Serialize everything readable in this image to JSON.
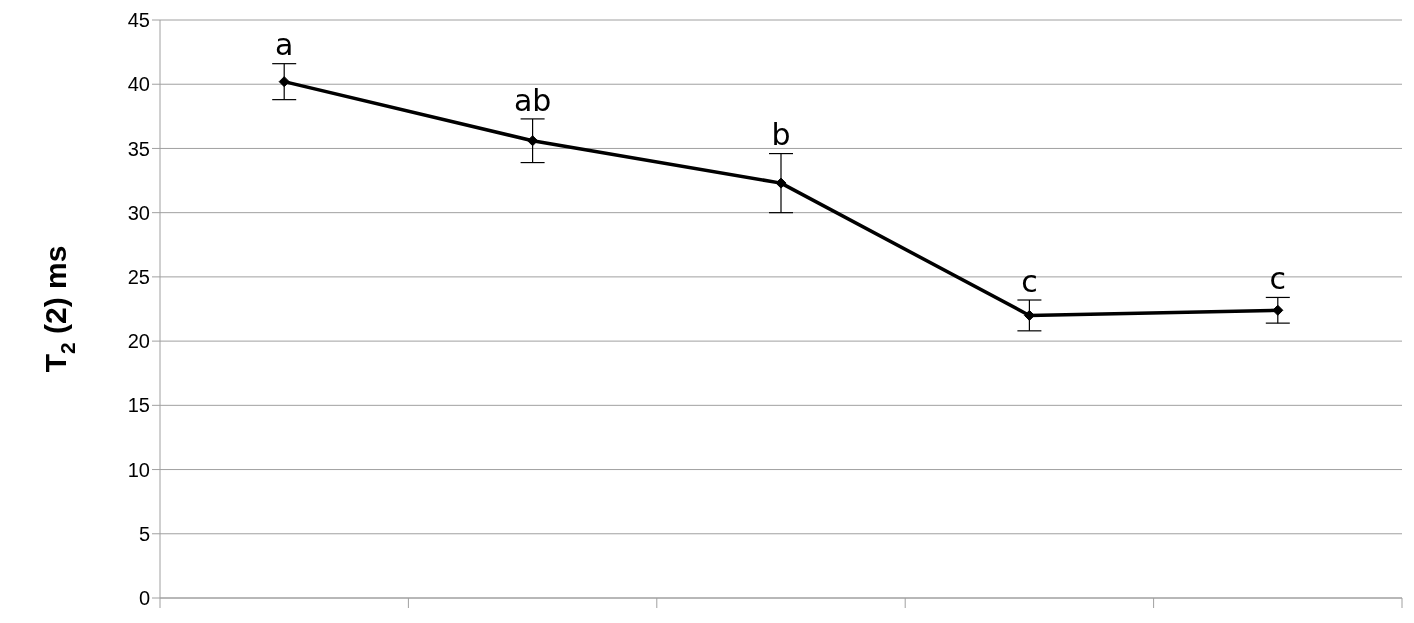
{
  "chart_data": {
    "type": "line",
    "ylabel": "T$_{2}$ (2) ms",
    "categories": [
      null,
      null,
      null,
      null,
      null
    ],
    "series": [
      {
        "color": "#000000",
        "values": [
          40.2,
          35.6,
          32.3,
          22.0,
          22.4
        ],
        "errors": [
          1.4,
          1.7,
          2.3,
          1.2,
          1.0
        ],
        "value_labels": [
          "a",
          "ab",
          "b",
          "c",
          "c"
        ]
      }
    ],
    "ylim": [
      0,
      45
    ],
    "yticks": [
      0,
      5,
      10,
      15,
      20,
      25,
      30,
      35,
      40,
      45
    ],
    "grid": "y",
    "marker": "diamond",
    "line_style": "solid",
    "legend": false
  }
}
